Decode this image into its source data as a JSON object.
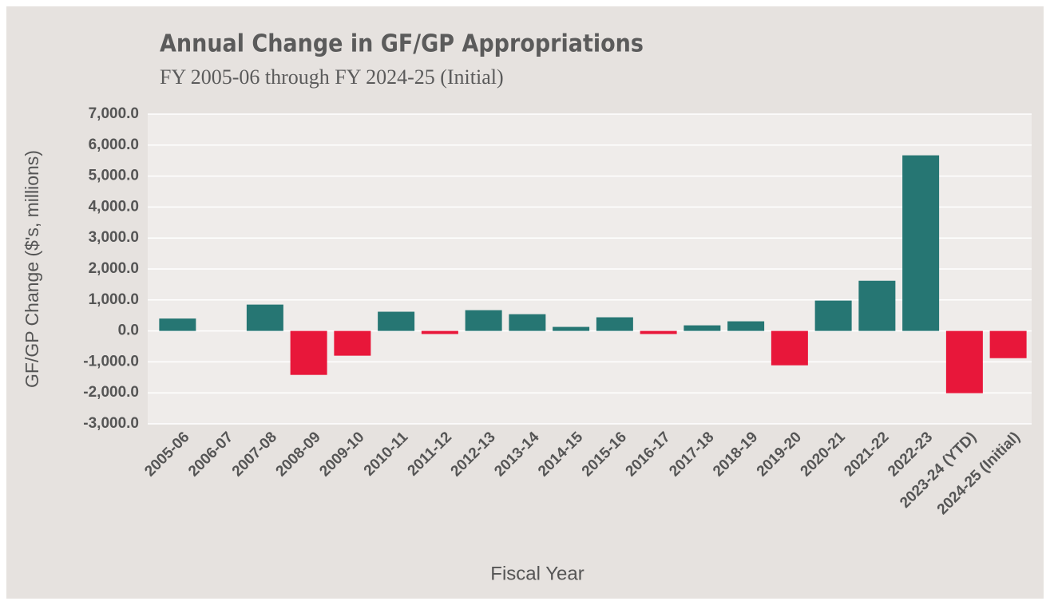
{
  "chart_data": {
    "type": "bar",
    "title": "Annual Change in GF/GP Appropriations",
    "subtitle": "FY 2005-06 through FY 2024-25 (Initial)",
    "x_label": "Fiscal Year",
    "y_label": "GF/GP Change ($'s, millions)",
    "categories": [
      "2005-06",
      "2006-07",
      "2007-08",
      "2008-09",
      "2009-10",
      "2010-11",
      "2011-12",
      "2012-13",
      "2013-14",
      "2014-15",
      "2015-16",
      "2016-17",
      "2017-18",
      "2018-19",
      "2019-20",
      "2020-21",
      "2021-22",
      "2022-23",
      "2023-24 (YTD)",
      "2024-25 (Initial)"
    ],
    "values": [
      400,
      0,
      850,
      -1420,
      -800,
      620,
      -100,
      670,
      540,
      130,
      440,
      -100,
      180,
      310,
      -1110,
      980,
      1620,
      5670,
      -2010,
      -880
    ],
    "colors": [
      "#267673",
      "#267673",
      "#267673",
      "#e8173a",
      "#e8173a",
      "#267673",
      "#e8173a",
      "#267673",
      "#267673",
      "#267673",
      "#267673",
      "#e8173a",
      "#267673",
      "#267673",
      "#e8173a",
      "#267673",
      "#267673",
      "#267673",
      "#e8173a",
      "#e8173a"
    ],
    "ylim": [
      -3000,
      7000
    ],
    "yticks": [
      {
        "value": -3000,
        "label": "-3,000.0"
      },
      {
        "value": -2000,
        "label": "-2,000.0"
      },
      {
        "value": -1000,
        "label": "-1,000.0"
      },
      {
        "value": 0,
        "label": "0.0"
      },
      {
        "value": 1000,
        "label": "1,000.0"
      },
      {
        "value": 2000,
        "label": "2,000.0"
      },
      {
        "value": 3000,
        "label": "3,000.0"
      },
      {
        "value": 4000,
        "label": "4,000.0"
      },
      {
        "value": 5000,
        "label": "5,000.0"
      },
      {
        "value": 6000,
        "label": "6,000.0"
      },
      {
        "value": 7000,
        "label": "7,000.0"
      }
    ],
    "grid": true
  }
}
